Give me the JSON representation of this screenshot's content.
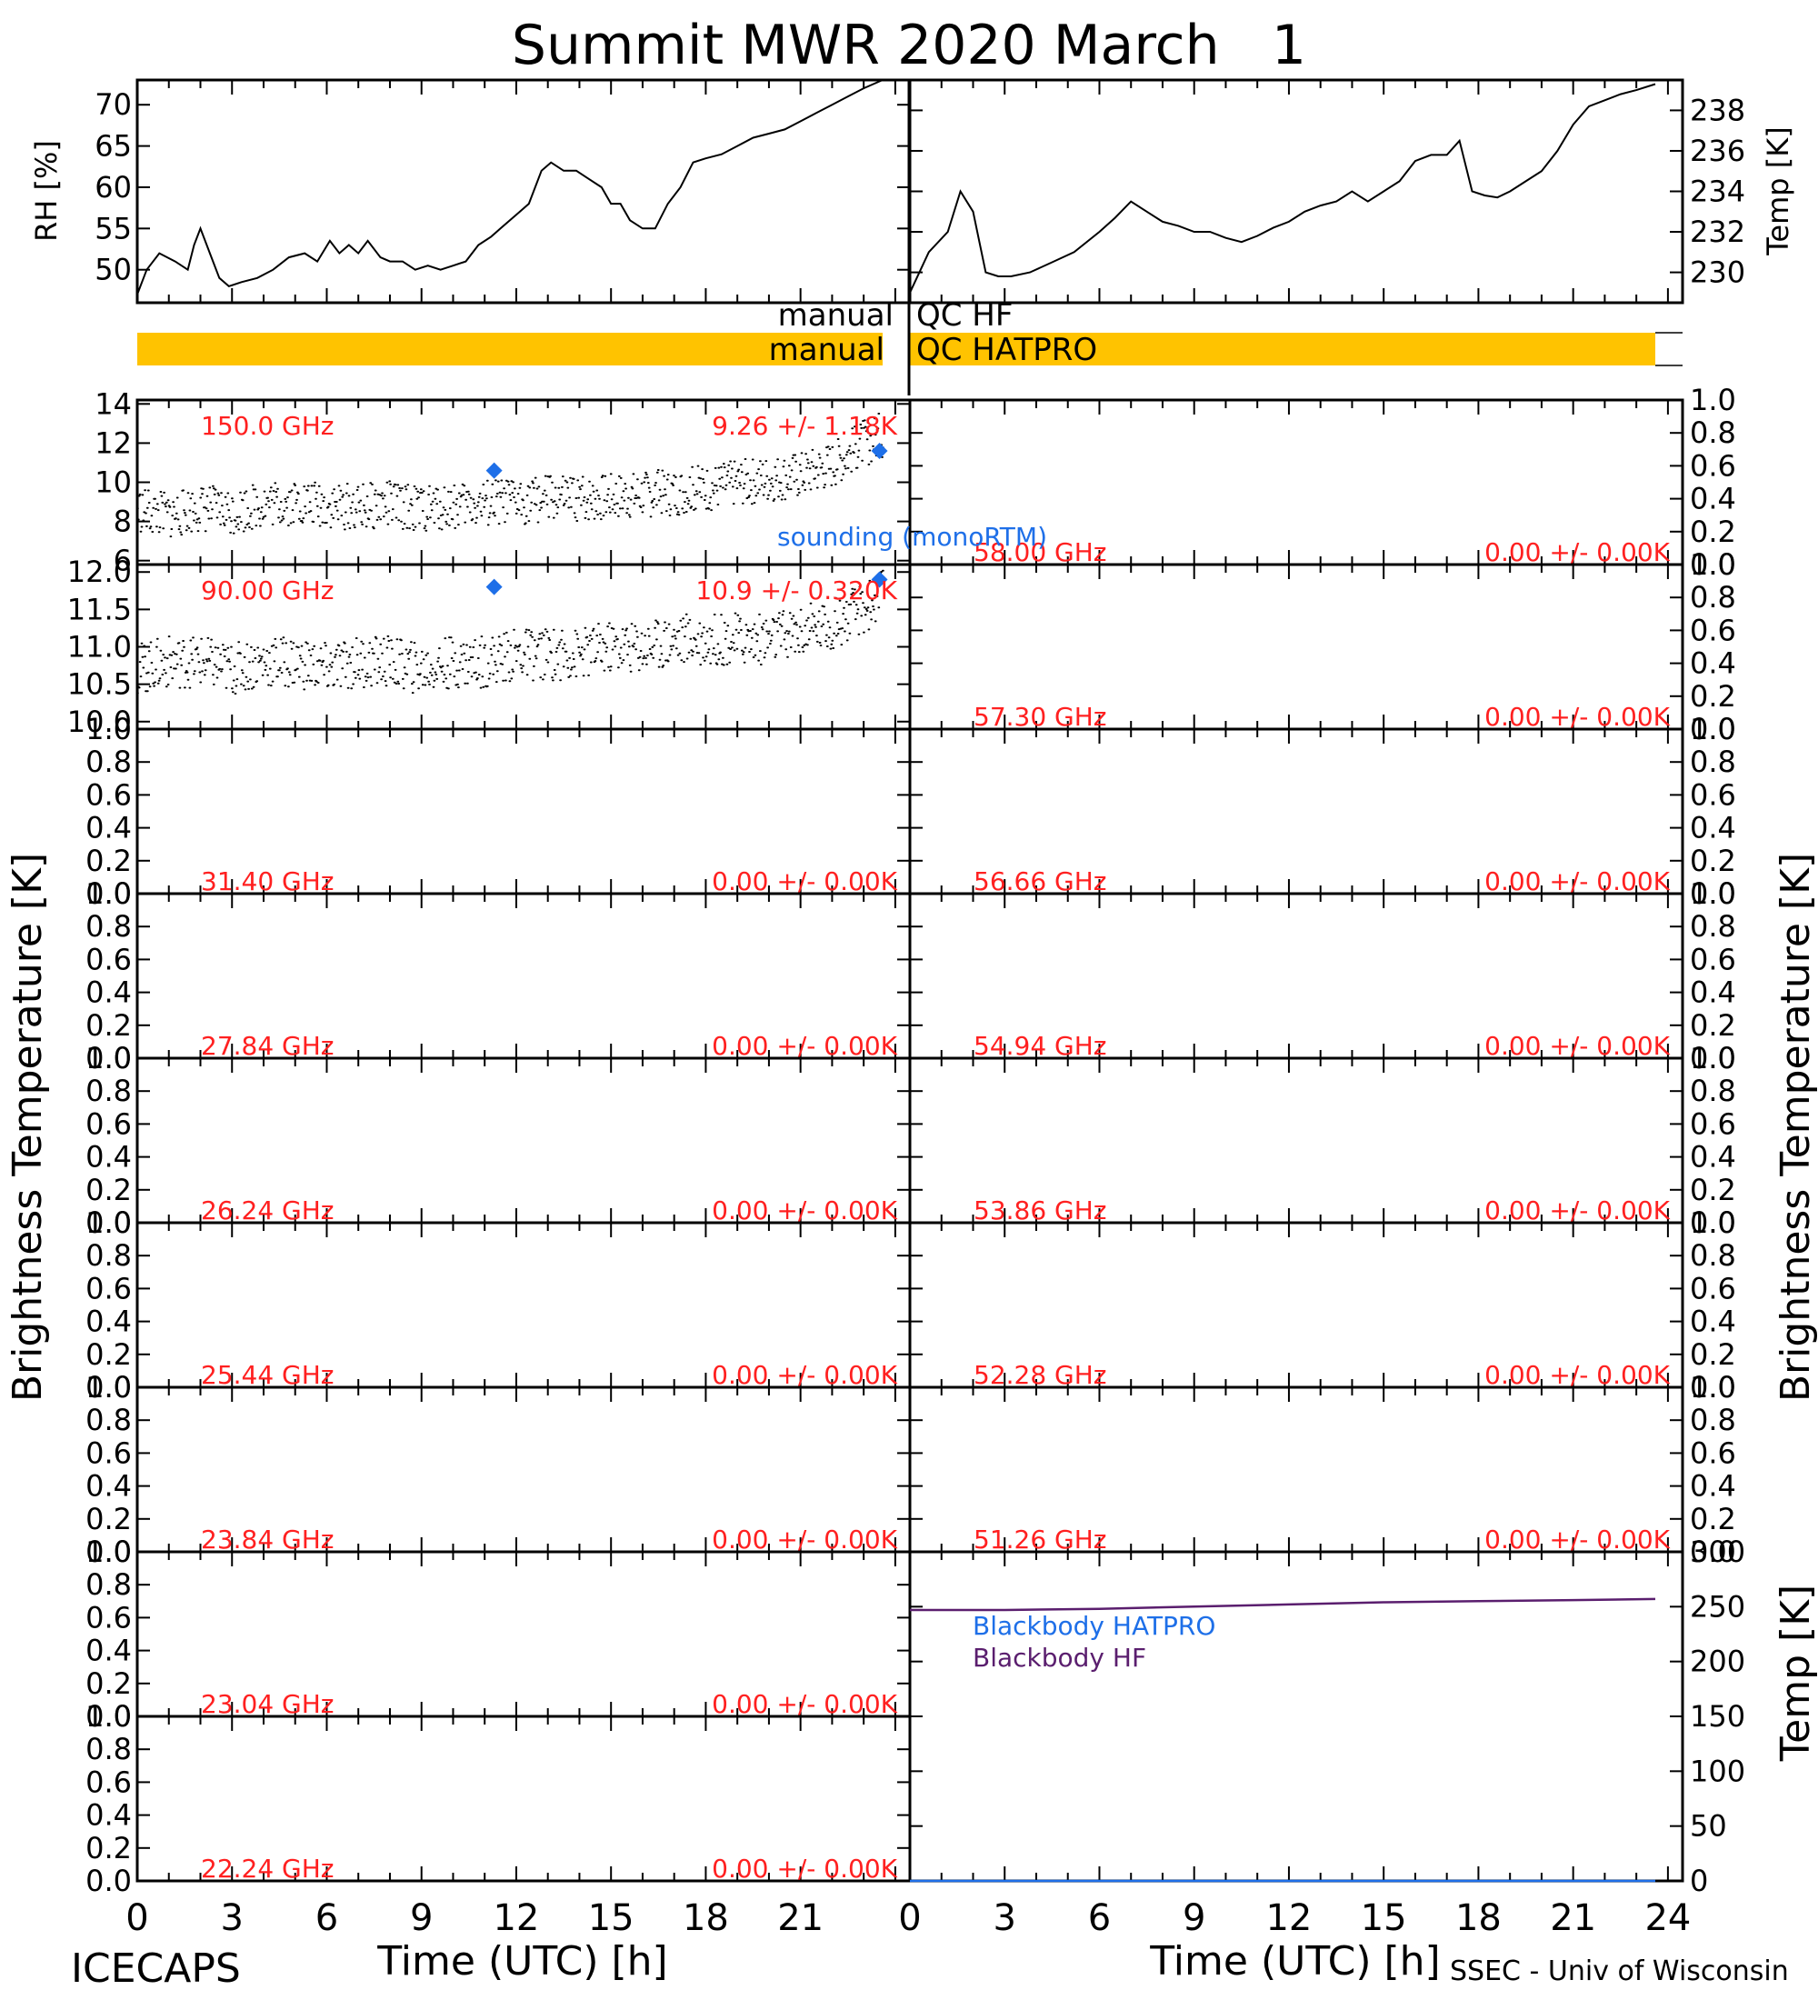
{
  "title": "Summit MWR 2020 March   1",
  "footer": {
    "left": "ICECAPS",
    "right": "SSEC - Univ of Wisconsin"
  },
  "axis_labels": {
    "time": "Time (UTC) [h]",
    "bt": "Brightness Temperature [K]",
    "rh": "RH [%]",
    "temp_k": "Temp [K]",
    "temp_k2": "Temp [K]"
  },
  "time_ticks": [
    "0",
    "3",
    "6",
    "9",
    "12",
    "15",
    "18",
    "21",
    "24"
  ],
  "qc": {
    "hf_left": "manual",
    "hf_right": "QC HF",
    "hatpro_left": "manual",
    "hatpro_right": "QC HATPRO",
    "hatpro_color": "#FFC300"
  },
  "colors": {
    "channel_label": "#FF2020",
    "sounding": "#1E6FE8",
    "bb_hatpro": "#1E6FE8",
    "bb_hf": "#5A1E6E",
    "data": "#000000"
  },
  "chart_data": [
    {
      "id": "rh",
      "type": "line",
      "ylabel": "RH [%]",
      "ylim": [
        46,
        73
      ],
      "yticks": [
        "50",
        "55",
        "60",
        "65",
        "70"
      ],
      "x": [
        0,
        0.3,
        0.7,
        1.2,
        1.6,
        1.8,
        2.0,
        2.3,
        2.6,
        2.9,
        3.3,
        3.8,
        4.3,
        4.8,
        5.3,
        5.7,
        6.1,
        6.4,
        6.7,
        7.0,
        7.3,
        7.7,
        8.0,
        8.4,
        8.8,
        9.2,
        9.6,
        10.0,
        10.4,
        10.8,
        11.2,
        11.5,
        11.8,
        12.1,
        12.4,
        12.8,
        13.1,
        13.5,
        13.9,
        14.3,
        14.7,
        15.0,
        15.3,
        15.6,
        16.0,
        16.4,
        16.8,
        17.2,
        17.6,
        18.0,
        18.5,
        19.0,
        19.5,
        20.0,
        20.5,
        21.0,
        21.5,
        22.0,
        22.5,
        23.0,
        23.6
      ],
      "values": [
        47,
        50,
        52,
        51,
        50,
        53,
        55,
        52,
        49,
        48,
        48.5,
        49,
        50,
        51.5,
        52,
        51,
        53.5,
        52,
        53,
        52,
        53.5,
        51.5,
        51,
        51,
        50,
        50.5,
        50,
        50.5,
        51,
        53,
        54,
        55,
        56,
        57,
        58,
        62,
        63,
        62,
        62,
        61,
        60,
        58,
        58,
        56,
        55,
        55,
        58,
        60,
        63,
        63.5,
        64,
        65,
        66,
        66.5,
        67,
        68,
        69,
        70,
        71,
        72,
        73
      ]
    },
    {
      "id": "temp_air",
      "type": "line",
      "ylabel": "Temp [K]",
      "ylim": [
        228.5,
        239.5
      ],
      "yticks": [
        "230",
        "232",
        "234",
        "236",
        "238"
      ],
      "x": [
        0,
        0.6,
        1.2,
        1.6,
        2.0,
        2.4,
        2.8,
        3.2,
        3.8,
        4.5,
        5.2,
        6.0,
        6.5,
        7.0,
        7.5,
        8.0,
        8.5,
        9.0,
        9.5,
        10.0,
        10.5,
        11.0,
        11.5,
        12.0,
        12.5,
        13.0,
        13.5,
        14.0,
        14.5,
        15.0,
        15.5,
        16.0,
        16.5,
        17.0,
        17.4,
        17.8,
        18.2,
        18.6,
        19.0,
        19.5,
        20.0,
        20.5,
        21.0,
        21.5,
        22.0,
        22.5,
        23.0,
        23.6
      ],
      "values": [
        229,
        231,
        232,
        234,
        233,
        230,
        229.8,
        229.8,
        230,
        230.5,
        231,
        232,
        232.7,
        233.5,
        233,
        232.5,
        232.3,
        232,
        232,
        231.7,
        231.5,
        231.8,
        232.2,
        232.5,
        233,
        233.3,
        233.5,
        234,
        233.5,
        234,
        234.5,
        235.5,
        235.8,
        235.8,
        236.5,
        234,
        233.8,
        233.7,
        234,
        234.5,
        235,
        236,
        237.3,
        238.2,
        238.5,
        238.8,
        239,
        239.3
      ]
    },
    {
      "id": "ch-150",
      "type": "scatter",
      "label": "150.0 GHz",
      "stat": "9.26 +/-  1.18K",
      "ylim": [
        5.8,
        14.2
      ],
      "yticks": [
        "6",
        "8",
        "10",
        "12",
        "14"
      ],
      "x": [
        0,
        1,
        2,
        3,
        4,
        5,
        6,
        7,
        8,
        9,
        10,
        11,
        12,
        13,
        14,
        15,
        16,
        17,
        18,
        19,
        20,
        21,
        22,
        23,
        23.6
      ],
      "values": [
        8.6,
        8.3,
        8.7,
        8.5,
        8.9,
        9.0,
        8.8,
        8.7,
        8.9,
        8.6,
        8.8,
        8.9,
        9.0,
        9.2,
        9.1,
        9.3,
        9.4,
        9.5,
        9.7,
        10.0,
        10.2,
        10.4,
        10.9,
        12.0,
        12.4
      ],
      "spread": 1.2,
      "sounding": {
        "label": "sounding (monoRTM)",
        "x": [
          11.3,
          23.5
        ],
        "values": [
          10.6,
          11.6
        ]
      }
    },
    {
      "id": "ch-90",
      "type": "scatter",
      "label": "90.00 GHz",
      "stat": "10.9 +/- 0.320K",
      "ylim": [
        9.9,
        12.1
      ],
      "yticks": [
        "10.0",
        "10.5",
        "11.0",
        "11.5",
        "12.0"
      ],
      "x": [
        0,
        1,
        2,
        3,
        4,
        5,
        6,
        7,
        8,
        9,
        10,
        11,
        12,
        13,
        14,
        15,
        16,
        17,
        18,
        19,
        20,
        21,
        22,
        23,
        23.6
      ],
      "values": [
        10.7,
        10.8,
        10.8,
        10.7,
        10.8,
        10.8,
        10.7,
        10.8,
        10.8,
        10.7,
        10.8,
        10.8,
        10.9,
        10.9,
        10.9,
        11.0,
        11.0,
        11.1,
        11.1,
        11.1,
        11.1,
        11.2,
        11.3,
        11.5,
        11.7
      ],
      "spread": 0.35,
      "sounding": {
        "label": "",
        "x": [
          11.3,
          23.5
        ],
        "values": [
          11.8,
          11.9
        ]
      }
    },
    {
      "id": "ch-31.40",
      "type": "line",
      "label": "31.40 GHz",
      "stat": "0.00 +/- 0.00K",
      "ylim": [
        0,
        1
      ],
      "yticks": [
        "0.0",
        "0.2",
        "0.4",
        "0.6",
        "0.8",
        "1.0"
      ]
    },
    {
      "id": "ch-27.84",
      "type": "line",
      "label": "27.84 GHz",
      "stat": "0.00 +/- 0.00K",
      "ylim": [
        0,
        1
      ],
      "yticks": [
        "0.0",
        "0.2",
        "0.4",
        "0.6",
        "0.8",
        "1.0"
      ]
    },
    {
      "id": "ch-26.24",
      "type": "line",
      "label": "26.24 GHz",
      "stat": "0.00 +/- 0.00K",
      "ylim": [
        0,
        1
      ],
      "yticks": [
        "0.0",
        "0.2",
        "0.4",
        "0.6",
        "0.8",
        "1.0"
      ]
    },
    {
      "id": "ch-25.44",
      "type": "line",
      "label": "25.44 GHz",
      "stat": "0.00 +/- 0.00K",
      "ylim": [
        0,
        1
      ],
      "yticks": [
        "0.0",
        "0.2",
        "0.4",
        "0.6",
        "0.8",
        "1.0"
      ]
    },
    {
      "id": "ch-23.84",
      "type": "line",
      "label": "23.84 GHz",
      "stat": "0.00 +/- 0.00K",
      "ylim": [
        0,
        1
      ],
      "yticks": [
        "0.0",
        "0.2",
        "0.4",
        "0.6",
        "0.8",
        "1.0"
      ]
    },
    {
      "id": "ch-23.04",
      "type": "line",
      "label": "23.04 GHz",
      "stat": "0.00 +/- 0.00K",
      "ylim": [
        0,
        1
      ],
      "yticks": [
        "0.0",
        "0.2",
        "0.4",
        "0.6",
        "0.8",
        "1.0"
      ]
    },
    {
      "id": "ch-22.24",
      "type": "line",
      "label": "22.24 GHz",
      "stat": "0.00 +/- 0.00K",
      "ylim": [
        0,
        1
      ],
      "yticks": [
        "0.0",
        "0.2",
        "0.4",
        "0.6",
        "0.8",
        "1.0"
      ]
    },
    {
      "id": "ch-58.00",
      "type": "line",
      "label": "58.00 GHz",
      "stat": "0.00 +/- 0.00K",
      "ylim": [
        0,
        1
      ],
      "yticks": [
        "0.0",
        "0.2",
        "0.4",
        "0.6",
        "0.8",
        "1.0"
      ]
    },
    {
      "id": "ch-57.30",
      "type": "line",
      "label": "57.30 GHz",
      "stat": "0.00 +/- 0.00K",
      "ylim": [
        0,
        1
      ],
      "yticks": [
        "0.0",
        "0.2",
        "0.4",
        "0.6",
        "0.8",
        "1.0"
      ]
    },
    {
      "id": "ch-56.66",
      "type": "line",
      "label": "56.66 GHz",
      "stat": "0.00 +/- 0.00K",
      "ylim": [
        0,
        1
      ],
      "yticks": [
        "0.0",
        "0.2",
        "0.4",
        "0.6",
        "0.8",
        "1.0"
      ]
    },
    {
      "id": "ch-54.94",
      "type": "line",
      "label": "54.94 GHz",
      "stat": "0.00 +/- 0.00K",
      "ylim": [
        0,
        1
      ],
      "yticks": [
        "0.0",
        "0.2",
        "0.4",
        "0.6",
        "0.8",
        "1.0"
      ]
    },
    {
      "id": "ch-53.86",
      "type": "line",
      "label": "53.86 GHz",
      "stat": "0.00 +/- 0.00K",
      "ylim": [
        0,
        1
      ],
      "yticks": [
        "0.0",
        "0.2",
        "0.4",
        "0.6",
        "0.8",
        "1.0"
      ]
    },
    {
      "id": "ch-52.28",
      "type": "line",
      "label": "52.28 GHz",
      "stat": "0.00 +/- 0.00K",
      "ylim": [
        0,
        1
      ],
      "yticks": [
        "0.0",
        "0.2",
        "0.4",
        "0.6",
        "0.8",
        "1.0"
      ]
    },
    {
      "id": "ch-51.26",
      "type": "line",
      "label": "51.26 GHz",
      "stat": "0.00 +/- 0.00K",
      "ylim": [
        0,
        1
      ],
      "yticks": [
        "0.0",
        "0.2",
        "0.4",
        "0.6",
        "0.8",
        "1.0"
      ]
    },
    {
      "id": "blackbody",
      "type": "line",
      "ylabel": "Temp [K]",
      "ylim": [
        0,
        300
      ],
      "yticks": [
        "0",
        "50",
        "100",
        "150",
        "200",
        "250",
        "300"
      ],
      "series": [
        {
          "name": "Blackbody HATPRO",
          "x": [
            0,
            23.6
          ],
          "values": [
            0,
            0
          ]
        },
        {
          "name": "Blackbody HF",
          "x": [
            0,
            3,
            6,
            9,
            12,
            15,
            18,
            21,
            23.6
          ],
          "values": [
            247,
            247,
            248,
            250,
            252,
            254,
            255,
            256,
            257
          ]
        }
      ]
    }
  ]
}
